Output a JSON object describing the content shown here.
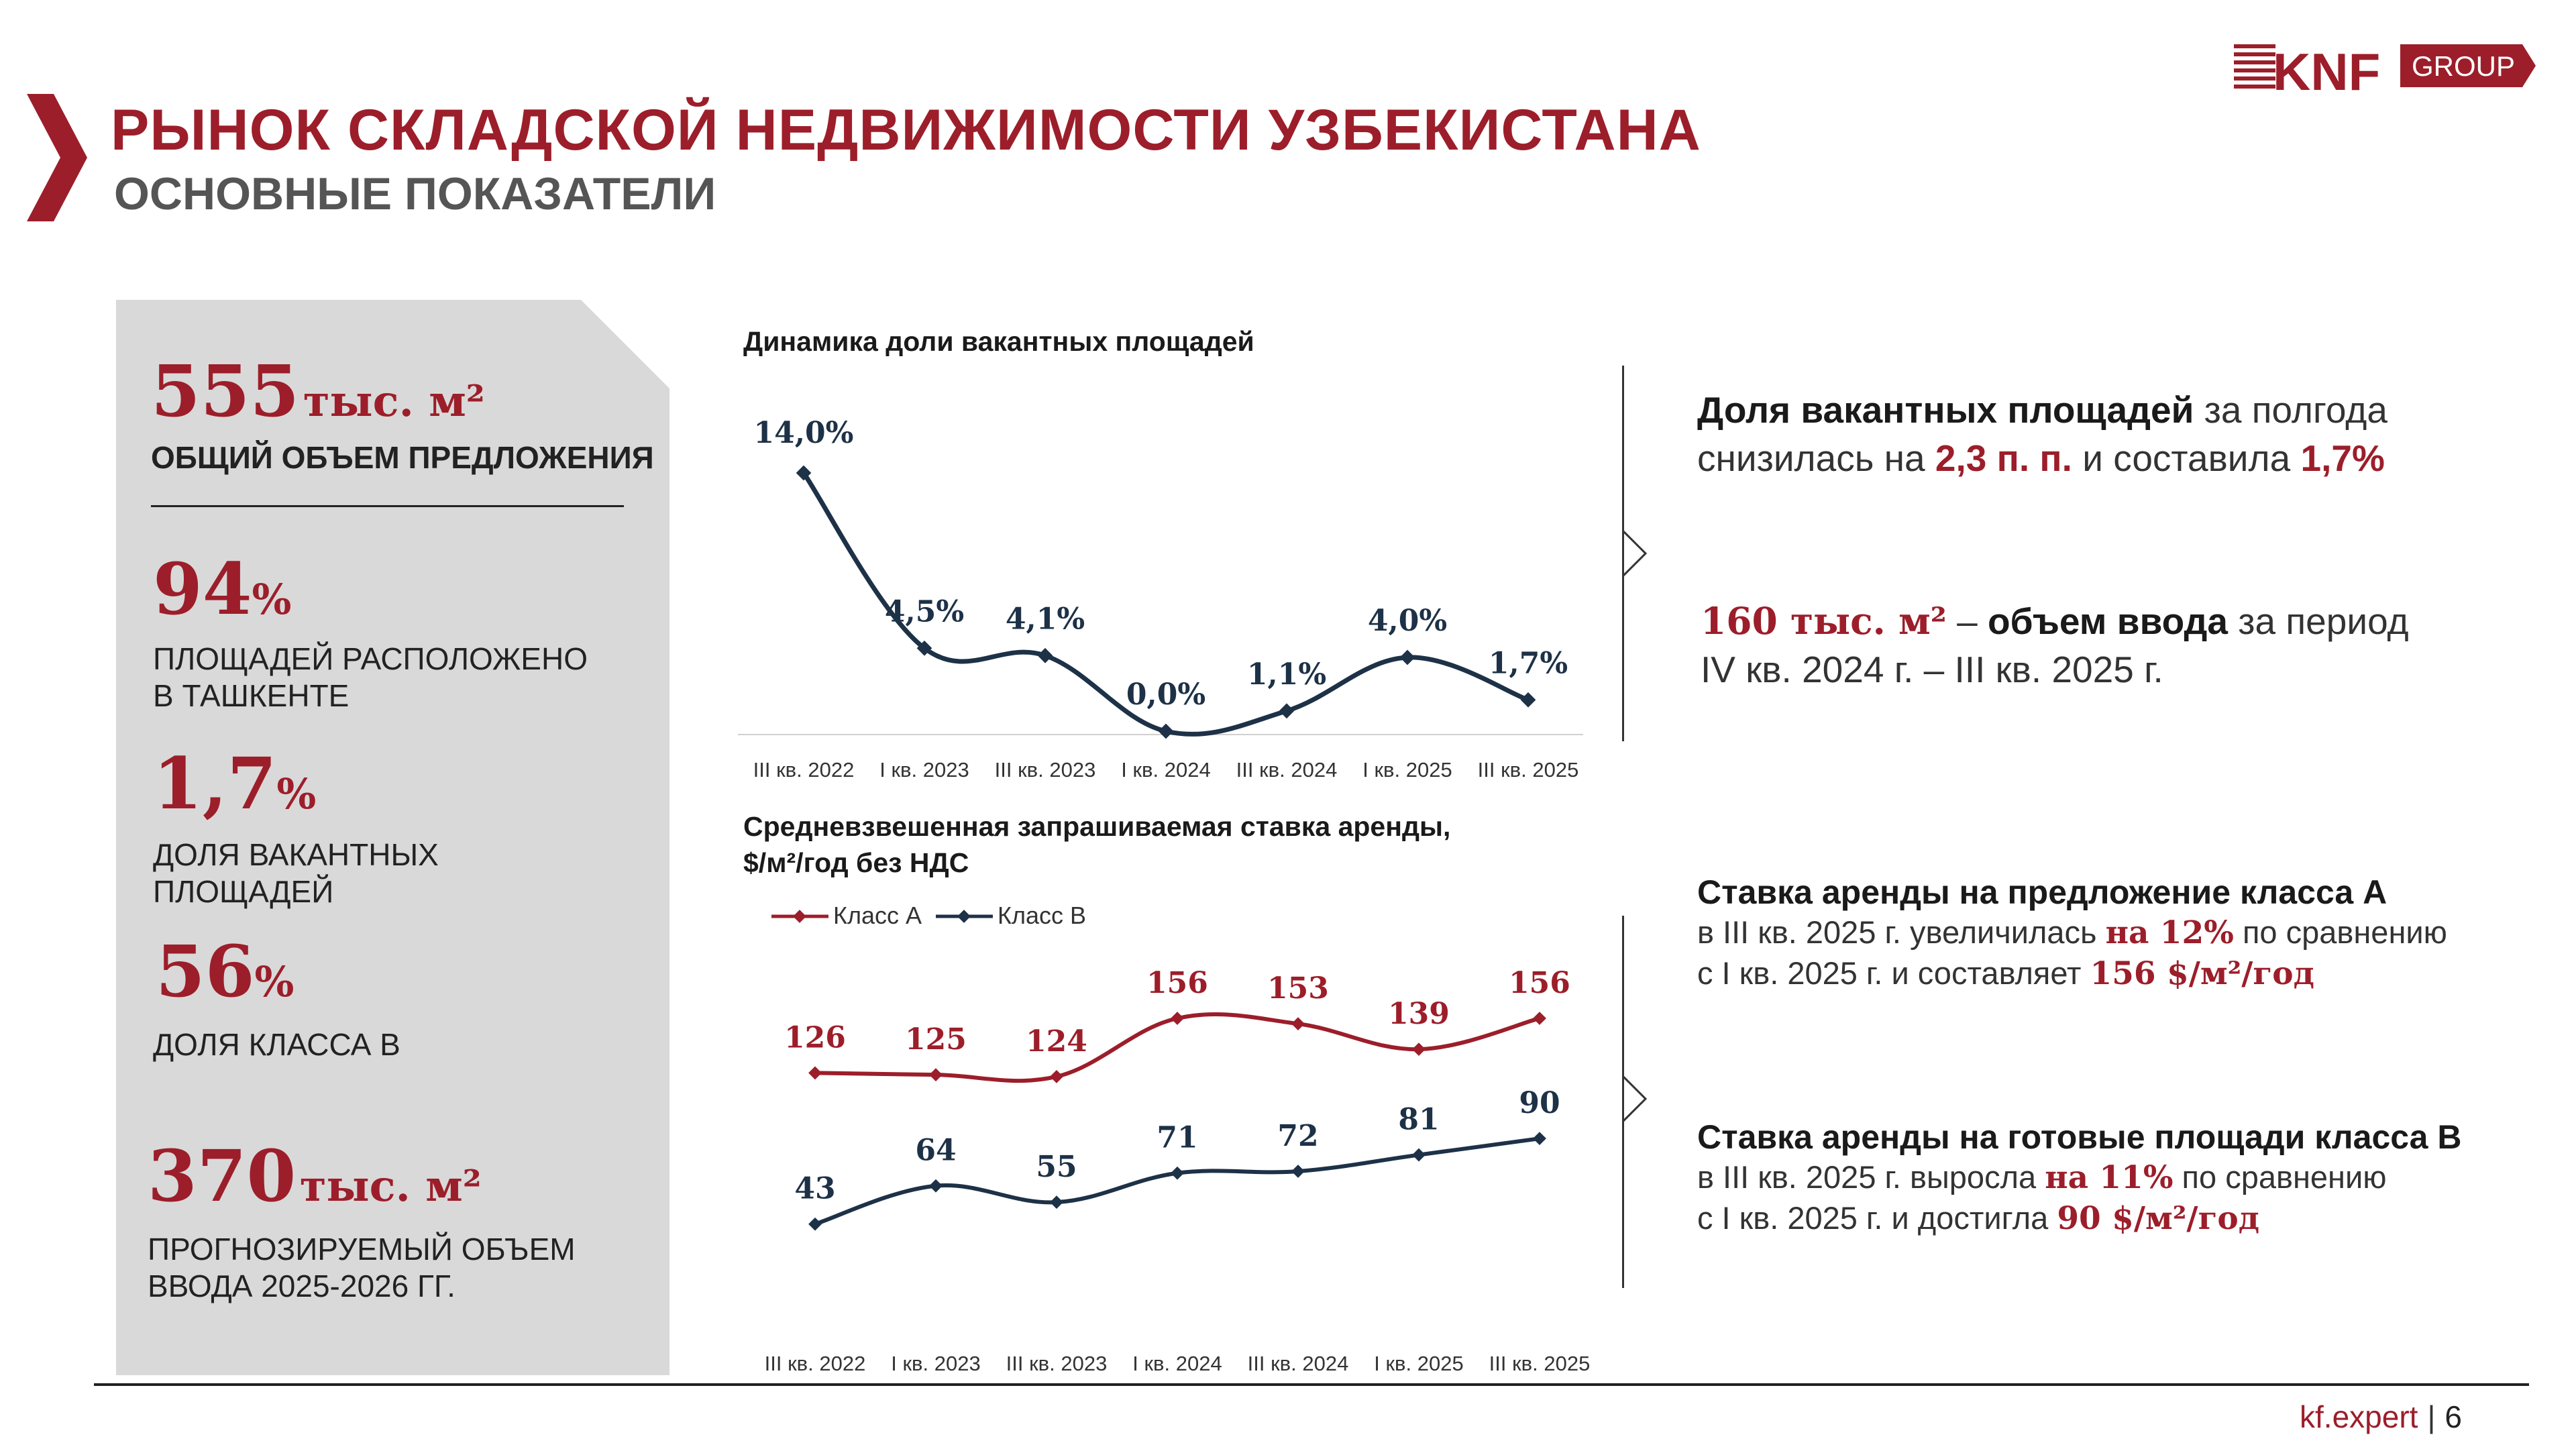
{
  "header": {
    "title": "РЫНОК СКЛАДСКОЙ НЕДВИЖИМОСТИ УЗБЕКИСТАНА",
    "subtitle": "ОСНОВНЫЕ ПОКАЗАТЕЛИ",
    "logo_mark": "KNF",
    "logo_group": "GROUP"
  },
  "kpis": [
    {
      "value": "555",
      "unit": "тыс. м²",
      "label": "ОБЩИЙ ОБЪЕМ ПРЕДЛОЖЕНИЯ"
    },
    {
      "value": "94",
      "unit": "%",
      "label1": "ПЛОЩАДЕЙ РАСПОЛОЖЕНО",
      "label2": "В ТАШКЕНТЕ"
    },
    {
      "value": "1,7",
      "unit": "%",
      "label1": "ДОЛЯ ВАКАНТНЫХ",
      "label2": "ПЛОЩАДЕЙ"
    },
    {
      "value": "56",
      "unit": "%",
      "label": "ДОЛЯ КЛАССА В"
    },
    {
      "value": "370",
      "unit": "тыс. м²",
      "label1": "ПРОГНОЗИРУЕМЫЙ ОБЪЕМ",
      "label2": "ВВОДА 2025-2026 ГГ."
    }
  ],
  "colors": {
    "accent": "#9c1e2a",
    "navy": "#1d3147",
    "panel": "#d9d9d9"
  },
  "chart_data": [
    {
      "type": "line",
      "title": "Динамика доли вакантных площадей",
      "categories": [
        "III кв. 2022",
        "I кв. 2023",
        "III кв. 2023",
        "I кв. 2024",
        "III кв. 2024",
        "I кв. 2025",
        "III кв. 2025"
      ],
      "series": [
        {
          "name": "Доля вакантных площадей",
          "values": [
            14.0,
            4.5,
            4.1,
            0.0,
            1.1,
            4.0,
            1.7
          ]
        }
      ],
      "data_labels": [
        "14,0%",
        "4,5%",
        "4,1%",
        "0,0%",
        "1,1%",
        "4,0%",
        "1,7%"
      ],
      "ylim": [
        0,
        14
      ]
    },
    {
      "type": "line",
      "title_line1": "Средневзвешенная запрашиваемая ставка аренды,",
      "title_line2": "$/м²/год без НДС",
      "categories": [
        "III кв. 2022",
        "I кв. 2023",
        "III кв. 2023",
        "I кв. 2024",
        "III кв. 2024",
        "I кв. 2025",
        "III кв. 2025"
      ],
      "series": [
        {
          "name": "Класс А",
          "values": [
            126,
            125,
            124,
            156,
            153,
            139,
            156
          ]
        },
        {
          "name": "Класс В",
          "values": [
            43,
            64,
            55,
            71,
            72,
            81,
            90
          ]
        }
      ],
      "legend": "top-left",
      "ylim": [
        30,
        170
      ]
    }
  ],
  "right": {
    "block1": {
      "strong": "Доля вакантных площадей",
      "t1": " за полгода",
      "t2": "снизилась на ",
      "r1": "2,3 п. п.",
      "t3": " и составила ",
      "r2": "1,7%"
    },
    "block2": {
      "r1": "160 тыс. м²",
      "t1": " – ",
      "strong": "объем ввода",
      "t2": " за период",
      "t3": "IV кв. 2024 г. – III кв. 2025 г."
    },
    "block3": {
      "heading": "Ставка аренды на предложение класса А",
      "t1": "в III кв. 2025 г. увеличилась ",
      "r1": "на 12%",
      "t2": " по сравнению",
      "t3": "с I кв. 2025 г. и составляет ",
      "r2": "156 $/м²/год"
    },
    "block4": {
      "heading": "Ставка аренды на готовые площади класса В",
      "t1": "в III кв. 2025 г. выросла ",
      "r1": "на 11%",
      "t2": " по сравнению",
      "t3": "с I кв. 2025 г. и достигла ",
      "r2": "90 $/м²/год"
    }
  },
  "footer": {
    "site": "kf.expert",
    "page": "6"
  }
}
